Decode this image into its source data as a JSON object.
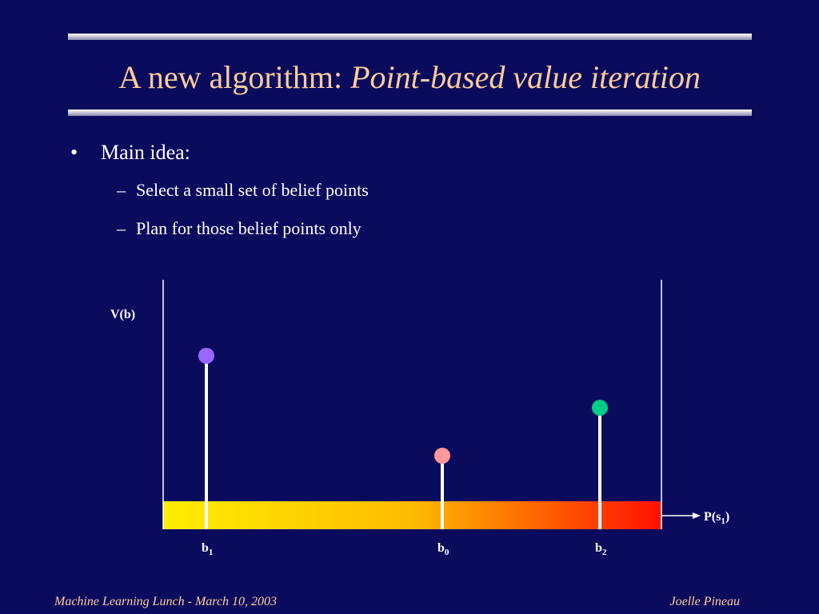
{
  "header": {
    "title": "A new algorithm:",
    "title_emphasis": "Point-based value iteration"
  },
  "bullets": [
    {
      "text": "Main idea:",
      "subitems": [
        "Select a small set of belief points",
        "Plan for those belief points only"
      ]
    }
  ],
  "diagram": {
    "y_label": "V(b)",
    "x_label": {
      "base": "P(s",
      "sub": "1",
      "end": ")"
    },
    "points": [
      {
        "base": "b",
        "sub": "1"
      },
      {
        "base": "b",
        "sub": "0"
      },
      {
        "base": "b",
        "sub": "2"
      }
    ]
  },
  "footer": {
    "left": "Machine Learning Lunch - March 10, 2003",
    "right": "Joelle Pineau"
  }
}
